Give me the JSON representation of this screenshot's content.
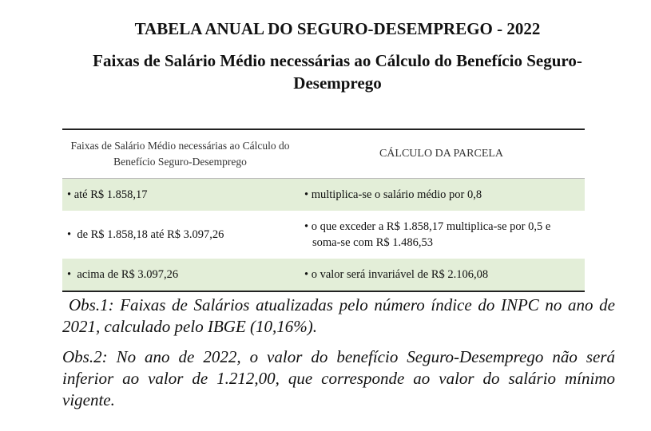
{
  "title": "TABELA ANUAL DO SEGURO-DESEMPREGO - 2022",
  "subtitle": "Faixas de Salário Médio necessárias ao Cálculo do Benefício Seguro-Desemprego",
  "table": {
    "headers": [
      "Faixas de Salário Médio necessárias ao Cálculo do Benefício Seguro-Desemprego",
      "CÁLCULO DA PARCELA"
    ],
    "rows": [
      [
        "• até R$ 1.858,17",
        "• multiplica-se o salário médio por 0,8"
      ],
      [
        "•  de R$ 1.858,18 até R$ 3.097,26",
        "• o que exceder a R$ 1.858,17 multiplica-se por 0,5 e soma-se com R$ 1.486,53"
      ],
      [
        "•  acima de R$ 3.097,26",
        "• o valor será invariável de R$ 2.106,08"
      ]
    ],
    "row_highlight_color": "#e3eed8"
  },
  "notes": [
    "Obs.1: Faixas de Salários atualizadas pelo número índice do INPC no ano de 2021, calculado pelo IBGE (10,16%).",
    "Obs.2: No ano de 2022, o valor do benefício Seguro-Desemprego não será inferior ao valor de 1.212,00, que corresponde ao valor do salário mínimo vigente."
  ]
}
